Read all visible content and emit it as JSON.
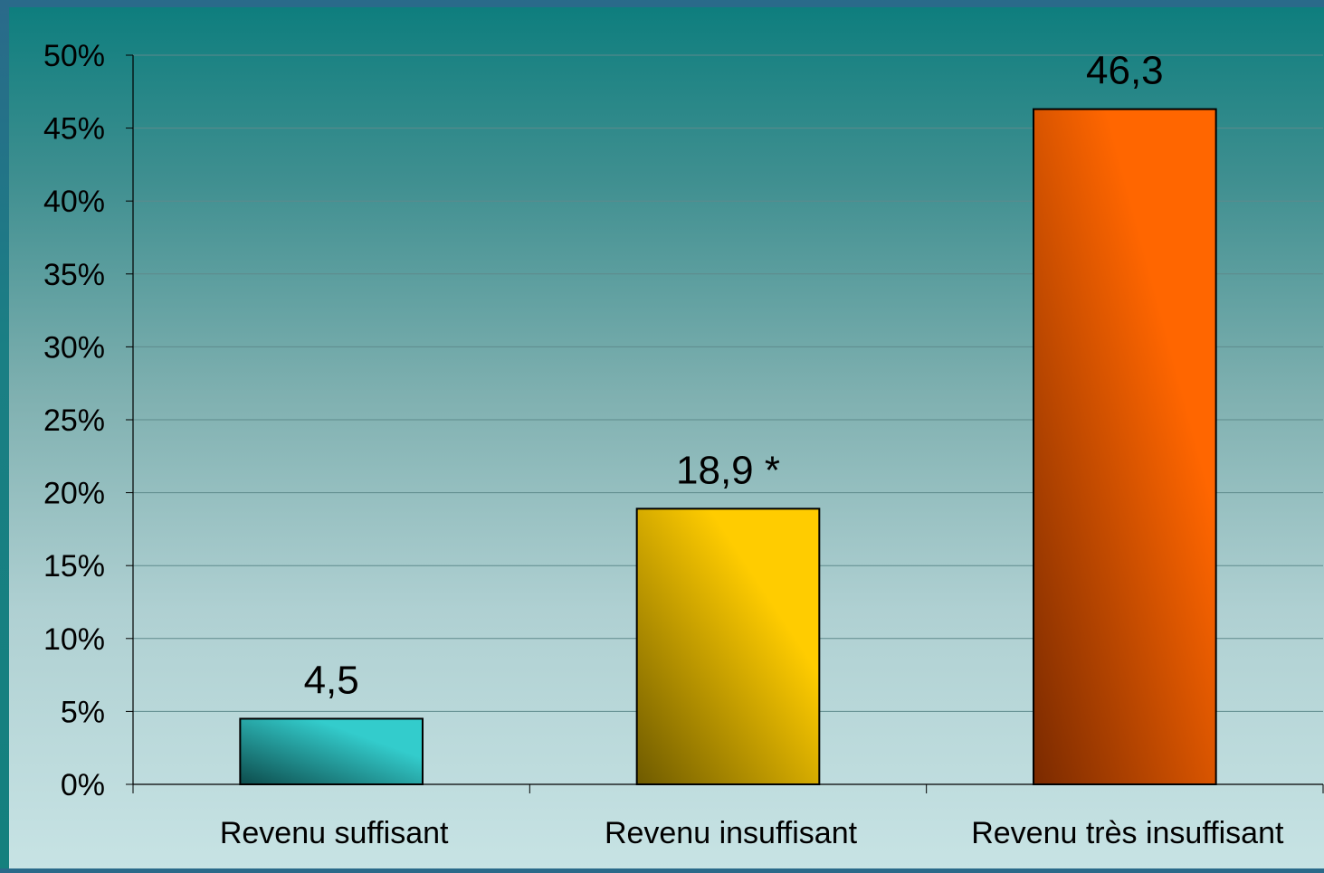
{
  "chart_data": {
    "type": "bar",
    "title": "",
    "xlabel": "",
    "ylabel": "",
    "ylim": [
      0,
      50
    ],
    "yticks": [
      "0%",
      "5%",
      "10%",
      "15%",
      "20%",
      "25%",
      "30%",
      "35%",
      "40%",
      "45%",
      "50%"
    ],
    "categories": [
      "Revenu suffisant",
      "Revenu insuffisant",
      "Revenu très insuffisant"
    ],
    "values": [
      4.5,
      18.9,
      46.3
    ],
    "data_labels": [
      "4,5",
      "18,9 *",
      "46,3"
    ],
    "grid": true,
    "legend": "none",
    "colors": [
      "#33cccc",
      "#ffcc00",
      "#ff6600"
    ],
    "dark_colors": [
      "#0d4c4c",
      "#6e5a00",
      "#7a2a00"
    ]
  }
}
